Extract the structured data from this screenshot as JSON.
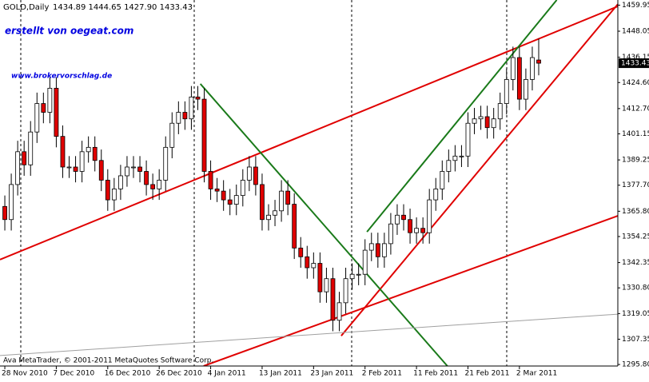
{
  "chart_data": {
    "type": "candlestick",
    "title": "GOLD,Daily",
    "header_values": "1434.89 1444.65 1427.90 1433.43",
    "annotations": [
      "erstellt von oegeat.com",
      "www.brokervorschlag.de"
    ],
    "footer": "Ava MetaTrader, © 2001-2011 MetaQuotes Software Corp.",
    "up_color": "#ffffff",
    "down_color": "#e00000",
    "edge_color": "#000000",
    "x": [
      0,
      1,
      2,
      3,
      4,
      5,
      6,
      7,
      8,
      9,
      10,
      11,
      12,
      13,
      14,
      15,
      16,
      17,
      18,
      19,
      20,
      21,
      22,
      23,
      24,
      25,
      26,
      27,
      28,
      29,
      30,
      31,
      32,
      33,
      34,
      35,
      36,
      37,
      38,
      39,
      40,
      41,
      42,
      43,
      44,
      45,
      46,
      47,
      48,
      49,
      50,
      51,
      52,
      53,
      54,
      55,
      56,
      57,
      58,
      59,
      60,
      61,
      62,
      63,
      64,
      65,
      66,
      67,
      68,
      69,
      70,
      71,
      72,
      73,
      74,
      75,
      76,
      77,
      78,
      79,
      80,
      81,
      82,
      83
    ],
    "open": [
      1368,
      1362,
      1378,
      1393,
      1387,
      1402,
      1415,
      1411,
      1422,
      1400,
      1386,
      1386,
      1384,
      1393,
      1395,
      1389,
      1380,
      1371,
      1376,
      1382,
      1386,
      1386,
      1384,
      1378,
      1376,
      1380,
      1395,
      1406,
      1411,
      1408,
      1418,
      1417,
      1384,
      1376,
      1375,
      1371,
      1369,
      1373,
      1380,
      1386,
      1378,
      1362,
      1364,
      1366,
      1375,
      1369,
      1349,
      1345,
      1340,
      1342,
      1329,
      1335,
      1316,
      1324,
      1335,
      1337,
      1337,
      1348,
      1351,
      1345,
      1351,
      1360,
      1364,
      1362,
      1356,
      1358,
      1356,
      1371,
      1376,
      1384,
      1389,
      1391,
      1391,
      1406,
      1408,
      1409,
      1404,
      1408,
      1415,
      1426,
      1436,
      1417,
      1426,
      1434.89
    ],
    "high": [
      1373,
      1383,
      1398,
      1398,
      1407,
      1420,
      1420,
      1427,
      1427,
      1405,
      1391,
      1391,
      1398,
      1400,
      1400,
      1394,
      1385,
      1381,
      1387,
      1391,
      1391,
      1391,
      1389,
      1383,
      1385,
      1400,
      1411,
      1416,
      1416,
      1423,
      1423,
      1422,
      1389,
      1381,
      1380,
      1376,
      1378,
      1385,
      1391,
      1391,
      1383,
      1369,
      1371,
      1380,
      1380,
      1374,
      1354,
      1350,
      1347,
      1347,
      1340,
      1340,
      1329,
      1340,
      1342,
      1342,
      1353,
      1356,
      1356,
      1356,
      1365,
      1369,
      1369,
      1367,
      1363,
      1363,
      1376,
      1381,
      1389,
      1394,
      1396,
      1396,
      1411,
      1413,
      1414,
      1414,
      1413,
      1420,
      1431,
      1441,
      1441,
      1431,
      1441,
      1444.65
    ],
    "low": [
      1357,
      1357,
      1373,
      1382,
      1382,
      1397,
      1406,
      1406,
      1395,
      1381,
      1381,
      1379,
      1379,
      1388,
      1384,
      1375,
      1366,
      1366,
      1371,
      1377,
      1381,
      1379,
      1373,
      1371,
      1371,
      1375,
      1390,
      1401,
      1403,
      1403,
      1412,
      1379,
      1371,
      1370,
      1366,
      1364,
      1364,
      1368,
      1375,
      1373,
      1357,
      1357,
      1359,
      1361,
      1364,
      1344,
      1340,
      1335,
      1335,
      1324,
      1324,
      1311,
      1311,
      1319,
      1330,
      1332,
      1332,
      1343,
      1340,
      1340,
      1346,
      1355,
      1357,
      1351,
      1351,
      1351,
      1351,
      1366,
      1371,
      1379,
      1384,
      1386,
      1386,
      1401,
      1403,
      1399,
      1399,
      1403,
      1410,
      1421,
      1412,
      1412,
      1421,
      1427.9
    ],
    "close": [
      1362,
      1378,
      1393,
      1387,
      1402,
      1415,
      1411,
      1422,
      1400,
      1386,
      1386,
      1384,
      1393,
      1395,
      1389,
      1380,
      1371,
      1376,
      1382,
      1386,
      1386,
      1384,
      1378,
      1376,
      1380,
      1395,
      1406,
      1411,
      1408,
      1418,
      1417,
      1384,
      1376,
      1375,
      1371,
      1369,
      1373,
      1380,
      1386,
      1378,
      1362,
      1364,
      1366,
      1375,
      1369,
      1349,
      1345,
      1340,
      1342,
      1329,
      1335,
      1316,
      1324,
      1335,
      1337,
      1337,
      1348,
      1351,
      1345,
      1351,
      1360,
      1364,
      1362,
      1356,
      1358,
      1356,
      1371,
      1376,
      1384,
      1389,
      1391,
      1391,
      1406,
      1408,
      1409,
      1404,
      1408,
      1415,
      1426,
      1436,
      1417,
      1426,
      1436,
      1433.43
    ],
    "xlim": [
      -0.75,
      95.3
    ],
    "ylim": [
      1295.1,
      1462.3
    ],
    "xticks": [
      {
        "value": 0,
        "label": "28 Nov 2010"
      },
      {
        "value": 8,
        "label": "7 Dec 2010"
      },
      {
        "value": 16,
        "label": "16 Dec 2010"
      },
      {
        "value": 24,
        "label": "26 Dec 2010"
      },
      {
        "value": 32,
        "label": "4 Jan 2011"
      },
      {
        "value": 40,
        "label": "13 Jan 2011"
      },
      {
        "value": 48,
        "label": "23 Jan 2011"
      },
      {
        "value": 56,
        "label": "2 Feb 2011"
      },
      {
        "value": 64,
        "label": "11 Feb 2011"
      },
      {
        "value": 72,
        "label": "21 Feb 2011"
      },
      {
        "value": 80,
        "label": "2 Mar 2011"
      }
    ],
    "yticks": [
      1459.95,
      1448.05,
      1436.15,
      {
        "value": 1424.6,
        "label": "1424.60"
      },
      {
        "value": 1412.7,
        "label": "1412.70"
      },
      1401.15,
      1389.25,
      {
        "value": 1377.7,
        "label": "1377.70"
      },
      {
        "value": 1365.8,
        "label": "1365.80"
      },
      1354.25,
      1342.35,
      {
        "value": 1330.8,
        "label": "1330.80"
      },
      1319.05,
      1307.35,
      {
        "value": 1295.8,
        "label": "1295.80"
      }
    ],
    "trendlines": [
      {
        "color": "#e00000",
        "x": [
          -0.75,
          95.3
        ],
        "y": [
          1343.7,
          1459.4
        ]
      },
      {
        "color": "#e00000",
        "x": [
          52.3,
          95.3
        ],
        "y": [
          1308.9,
          1460.4
        ]
      },
      {
        "color": "#e00000",
        "x": [
          30.9,
          95.3
        ],
        "y": [
          1295.1,
          1363.7
        ]
      },
      {
        "color": "#1a7a1a",
        "x": [
          56.3,
          85.8
        ],
        "y": [
          1356.4,
          1462.3
        ]
      },
      {
        "color": "#1a7a1a",
        "x": [
          30.4,
          68.8
        ],
        "y": [
          1424.0,
          1295.1
        ]
      },
      {
        "color": "#a0a0a0",
        "x": [
          -0.75,
          95.3
        ],
        "y": [
          1299.9,
          1318.8
        ]
      }
    ]
  }
}
